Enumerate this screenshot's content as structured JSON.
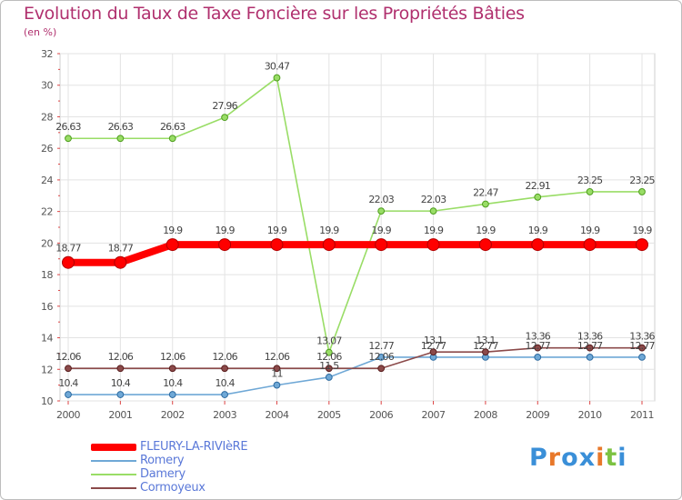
{
  "title": "Evolution du Taux de Taxe Foncière sur les Propriétés Bâties",
  "subtitle": "(en %)",
  "logo": {
    "text": "Proxiti",
    "colors": [
      "#3a8fd8",
      "#e8782a",
      "#3a8fd8",
      "#3a8fd8",
      "#e8782a",
      "#7cc242"
    ]
  },
  "chart_data": {
    "type": "line",
    "title": "Evolution du Taux de Taxe Foncière sur les Propriétés Bâties",
    "ylabel": "(en %)",
    "xlabel": "",
    "x": [
      "2000",
      "2001",
      "2002",
      "2003",
      "2004",
      "2005",
      "2006",
      "2007",
      "2008",
      "2009",
      "2010",
      "2011"
    ],
    "ylim": [
      10,
      32
    ],
    "yticks": [
      "10",
      "12",
      "14",
      "16",
      "18",
      "20",
      "22",
      "24",
      "26",
      "28",
      "30",
      "32"
    ],
    "grid": true,
    "legend_position": "bottom-left",
    "series": [
      {
        "name": "FLEURY-LA-RIVIèRE",
        "color": "#ff0000",
        "values": [
          18.77,
          18.77,
          19.9,
          19.9,
          19.9,
          19.9,
          19.9,
          19.9,
          19.9,
          19.9,
          19.9,
          19.9
        ],
        "labels": [
          "18.77",
          "18.77",
          "19.9",
          "19.9",
          "19.9",
          "19.9",
          "19.9",
          "19.9",
          "19.9",
          "19.9",
          "19.9",
          "19.9"
        ]
      },
      {
        "name": "Romery",
        "color": "#6fa8d6",
        "values": [
          10.4,
          10.4,
          10.4,
          10.4,
          11,
          11.5,
          12.77,
          12.77,
          12.77,
          12.77,
          12.77,
          12.77
        ],
        "labels": [
          "10.4",
          "10.4",
          "10.4",
          "10.4",
          "11",
          "11.5",
          "12.77",
          "12.77",
          "12.77",
          "12.77",
          "12.77",
          "12.77"
        ]
      },
      {
        "name": "Damery",
        "color": "#99dd66",
        "values": [
          26.63,
          26.63,
          26.63,
          27.96,
          30.47,
          13.07,
          22.03,
          22.03,
          22.47,
          22.91,
          23.25,
          23.25
        ],
        "labels": [
          "26.63",
          "26.63",
          "26.63",
          "27.96",
          "30.47",
          "13.07",
          "22.03",
          "22.03",
          "22.47",
          "22.91",
          "23.25",
          "23.25"
        ]
      },
      {
        "name": "Cormoyeux",
        "color": "#8b4a4a",
        "values": [
          12.06,
          12.06,
          12.06,
          12.06,
          12.06,
          12.06,
          12.06,
          13.1,
          13.1,
          13.36,
          13.36,
          13.36
        ],
        "labels": [
          "12.06",
          "12.06",
          "12.06",
          "12.06",
          "12.06",
          "12.06",
          "12.06",
          "13.1",
          "13.1",
          "13.36",
          "13.36",
          "13.36"
        ]
      }
    ]
  }
}
